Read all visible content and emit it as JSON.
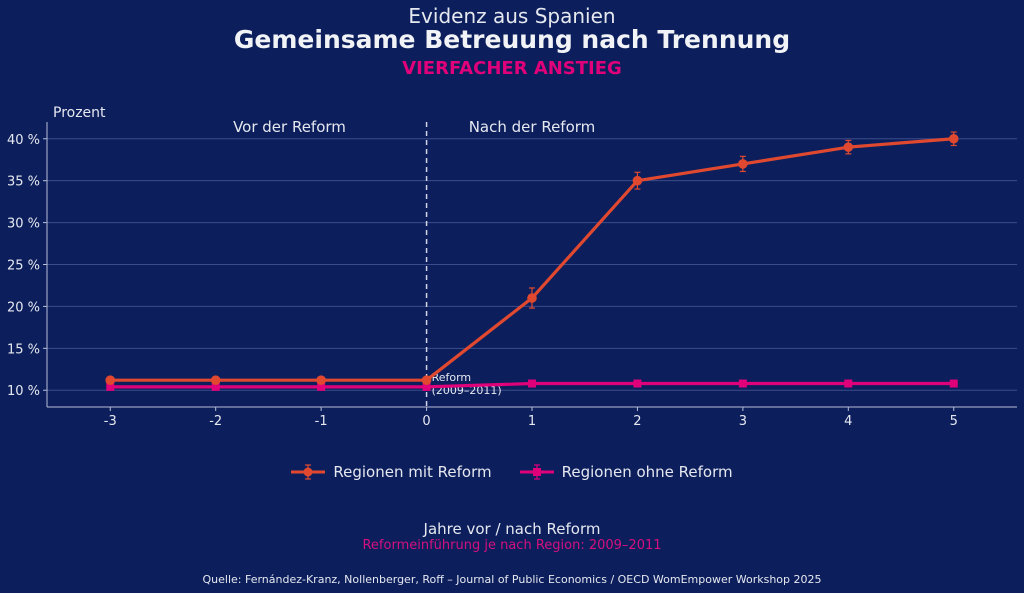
{
  "chart_data": {
    "type": "line",
    "suptitle": "Evidenz aus Spanien",
    "title": "Gemeinsame Betreuung nach Trennung",
    "subtitle": "VIERFACHER ANSTIEG",
    "ylabel": "Prozent",
    "xlabel": "Jahre vor / nach Reform",
    "xlabel_note": "Reformeinführung je nach Region: 2009–2011",
    "source": "Quelle: Fernández-Kranz, Nollenberger, Roff – Journal of Public Economics / OECD WomEmpower Workshop 2025",
    "x": [
      -3,
      -2,
      -1,
      0,
      1,
      2,
      3,
      4,
      5
    ],
    "xticks": [
      "-3",
      "-2",
      "-1",
      "0",
      "1",
      "2",
      "3",
      "4",
      "5"
    ],
    "xlim": [
      -3.6,
      5.6
    ],
    "yticks": [
      10,
      15,
      20,
      25,
      30,
      35,
      40
    ],
    "ytick_labels": [
      "10 %",
      "15 %",
      "20 %",
      "25 %",
      "30 %",
      "35 %",
      "40 %"
    ],
    "ylim": [
      8,
      42
    ],
    "grid": "horizontal",
    "legend_placement": "bottom-center",
    "series": [
      {
        "name": "Regionen mit Reform",
        "color": "#e0492f",
        "marker": "circle",
        "values": [
          11.2,
          11.2,
          11.2,
          11.2,
          21,
          35,
          37,
          39,
          40
        ],
        "errors": [
          0,
          0,
          0,
          0,
          1.2,
          1.0,
          0.9,
          0.8,
          0.8
        ]
      },
      {
        "name": "Regionen ohne Reform",
        "color": "#e0007a",
        "marker": "square",
        "values": [
          10.4,
          10.4,
          10.4,
          10.4,
          10.8,
          10.8,
          10.8,
          10.8,
          10.8
        ],
        "errors": [
          0,
          0,
          0,
          0,
          0,
          0,
          0,
          0,
          0
        ]
      }
    ],
    "reform_line": {
      "x": 0,
      "label_line1": "Reform",
      "label_line2": "(2009–2011)"
    },
    "region_labels": {
      "before": "Vor der Reform",
      "after": "Nach der Reform"
    }
  }
}
